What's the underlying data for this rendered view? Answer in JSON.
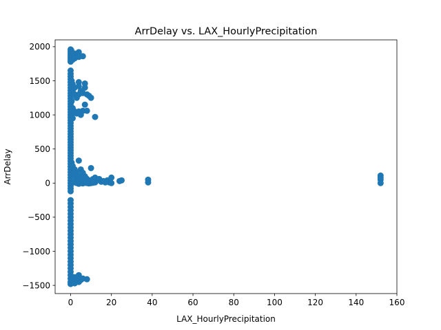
{
  "chart_data": {
    "type": "scatter",
    "title": "ArrDelay vs. LAX_HourlyPrecipitation",
    "xlabel": "LAX_HourlyPrecipitation",
    "ylabel": "ArrDelay",
    "xlim": [
      -7.6,
      160
    ],
    "ylim": [
      -1620,
      2100
    ],
    "xticks": [
      0,
      20,
      40,
      60,
      80,
      100,
      120,
      140,
      160
    ],
    "yticks": [
      -1500,
      -1000,
      -500,
      0,
      500,
      1000,
      1500,
      2000
    ],
    "xtick_labels": [
      "0",
      "20",
      "40",
      "60",
      "80",
      "100",
      "120",
      "140",
      "160"
    ],
    "ytick_labels": [
      "−1500",
      "−1000",
      "−500",
      "0",
      "500",
      "1000",
      "1500",
      "2000"
    ],
    "grid": false,
    "marker_color": "#1f77b4",
    "series": [
      {
        "points": [
          [
            0,
            1960
          ],
          [
            0,
            1930
          ],
          [
            0,
            1900
          ],
          [
            0,
            1870
          ],
          [
            0,
            1840
          ],
          [
            0,
            1810
          ],
          [
            0,
            1780
          ],
          [
            0.3,
            1950
          ],
          [
            0.5,
            1890
          ],
          [
            1,
            1880
          ],
          [
            1,
            1810
          ],
          [
            2,
            1900
          ],
          [
            2,
            1830
          ],
          [
            4,
            1920
          ],
          [
            4,
            1850
          ],
          [
            6,
            1860
          ],
          [
            0,
            1650
          ],
          [
            0,
            1600
          ],
          [
            0,
            1560
          ],
          [
            0,
            1520
          ],
          [
            0,
            1480
          ],
          [
            0,
            1440
          ],
          [
            0,
            1400
          ],
          [
            0,
            1360
          ],
          [
            0,
            1320
          ],
          [
            0,
            1280
          ],
          [
            0,
            1240
          ],
          [
            0,
            1200
          ],
          [
            0,
            1160
          ],
          [
            0,
            1120
          ],
          [
            0,
            1080
          ],
          [
            0,
            1040
          ],
          [
            0,
            1000
          ],
          [
            0,
            960
          ],
          [
            0,
            920
          ],
          [
            0,
            880
          ],
          [
            0,
            840
          ],
          [
            0,
            800
          ],
          [
            0,
            760
          ],
          [
            0,
            720
          ],
          [
            0,
            680
          ],
          [
            0,
            640
          ],
          [
            0,
            600
          ],
          [
            0,
            560
          ],
          [
            0,
            520
          ],
          [
            0,
            480
          ],
          [
            0,
            440
          ],
          [
            0,
            400
          ],
          [
            0,
            360
          ],
          [
            0,
            320
          ],
          [
            0,
            280
          ],
          [
            0,
            240
          ],
          [
            0,
            200
          ],
          [
            0,
            160
          ],
          [
            0,
            120
          ],
          [
            0,
            80
          ],
          [
            0,
            40
          ],
          [
            0,
            0
          ],
          [
            0,
            -40
          ],
          [
            0,
            -80
          ],
          [
            0,
            -120
          ],
          [
            0.5,
            1500
          ],
          [
            0.5,
            1200
          ],
          [
            0.5,
            1000
          ],
          [
            1,
            1450
          ],
          [
            1,
            1350
          ],
          [
            1,
            1100
          ],
          [
            1,
            950
          ],
          [
            2,
            1400
          ],
          [
            2,
            1300
          ],
          [
            2,
            1050
          ],
          [
            3,
            1250
          ],
          [
            3,
            1020
          ],
          [
            4,
            1480
          ],
          [
            4,
            1420
          ],
          [
            4,
            1300
          ],
          [
            4,
            1050
          ],
          [
            5,
            1350
          ],
          [
            5,
            1000
          ],
          [
            6,
            1320
          ],
          [
            6,
            1060
          ],
          [
            7,
            1460
          ],
          [
            7,
            1400
          ],
          [
            7,
            1150
          ],
          [
            8,
            1300
          ],
          [
            8,
            1060
          ],
          [
            9,
            1280
          ],
          [
            10,
            1250
          ],
          [
            12,
            970
          ],
          [
            0.5,
            300
          ],
          [
            1,
            250
          ],
          [
            1,
            150
          ],
          [
            2,
            200
          ],
          [
            2,
            100
          ],
          [
            3,
            150
          ],
          [
            3,
            50
          ],
          [
            4,
            330
          ],
          [
            4,
            100
          ],
          [
            5,
            200
          ],
          [
            5,
            60
          ],
          [
            6,
            150
          ],
          [
            6,
            30
          ],
          [
            7,
            100
          ],
          [
            7,
            20
          ],
          [
            8,
            60
          ],
          [
            8,
            10
          ],
          [
            9,
            40
          ],
          [
            10,
            220
          ],
          [
            10,
            30
          ],
          [
            11,
            60
          ],
          [
            12,
            80
          ],
          [
            12,
            10
          ],
          [
            13,
            40
          ],
          [
            14,
            60
          ],
          [
            15,
            20
          ],
          [
            16,
            30
          ],
          [
            17,
            10
          ],
          [
            18,
            40
          ],
          [
            19,
            10
          ],
          [
            20,
            80
          ],
          [
            20,
            0
          ],
          [
            24,
            30
          ],
          [
            25,
            40
          ],
          [
            38,
            50
          ],
          [
            38,
            10
          ],
          [
            2,
            10
          ],
          [
            3,
            0
          ],
          [
            4,
            -10
          ],
          [
            5,
            0
          ],
          [
            6,
            -5
          ],
          [
            7,
            5
          ],
          [
            8,
            0
          ],
          [
            9,
            -5
          ],
          [
            10,
            0
          ],
          [
            11,
            5
          ],
          [
            0,
            -250
          ],
          [
            0,
            -300
          ],
          [
            0,
            -350
          ],
          [
            0,
            -400
          ],
          [
            0,
            -450
          ],
          [
            0,
            -500
          ],
          [
            0,
            -550
          ],
          [
            0,
            -600
          ],
          [
            0,
            -650
          ],
          [
            0,
            -700
          ],
          [
            0,
            -750
          ],
          [
            0,
            -800
          ],
          [
            0,
            -850
          ],
          [
            0,
            -900
          ],
          [
            0,
            -950
          ],
          [
            0,
            -1000
          ],
          [
            0,
            -1050
          ],
          [
            0,
            -1100
          ],
          [
            0,
            -1150
          ],
          [
            0,
            -1200
          ],
          [
            0,
            -1250
          ],
          [
            0,
            -1300
          ],
          [
            0,
            -1350
          ],
          [
            0,
            -1400
          ],
          [
            0,
            -1450
          ],
          [
            0,
            -1480
          ],
          [
            0.5,
            -1460
          ],
          [
            1,
            -1440
          ],
          [
            1,
            -1400
          ],
          [
            2,
            -1470
          ],
          [
            2,
            -1380
          ],
          [
            3,
            -1430
          ],
          [
            4,
            -1350
          ],
          [
            4,
            -1450
          ],
          [
            5,
            -1420
          ],
          [
            6,
            -1400
          ],
          [
            8,
            -1410
          ],
          [
            152,
            110
          ],
          [
            152,
            80
          ],
          [
            152,
            50
          ],
          [
            152,
            0
          ]
        ]
      }
    ]
  }
}
